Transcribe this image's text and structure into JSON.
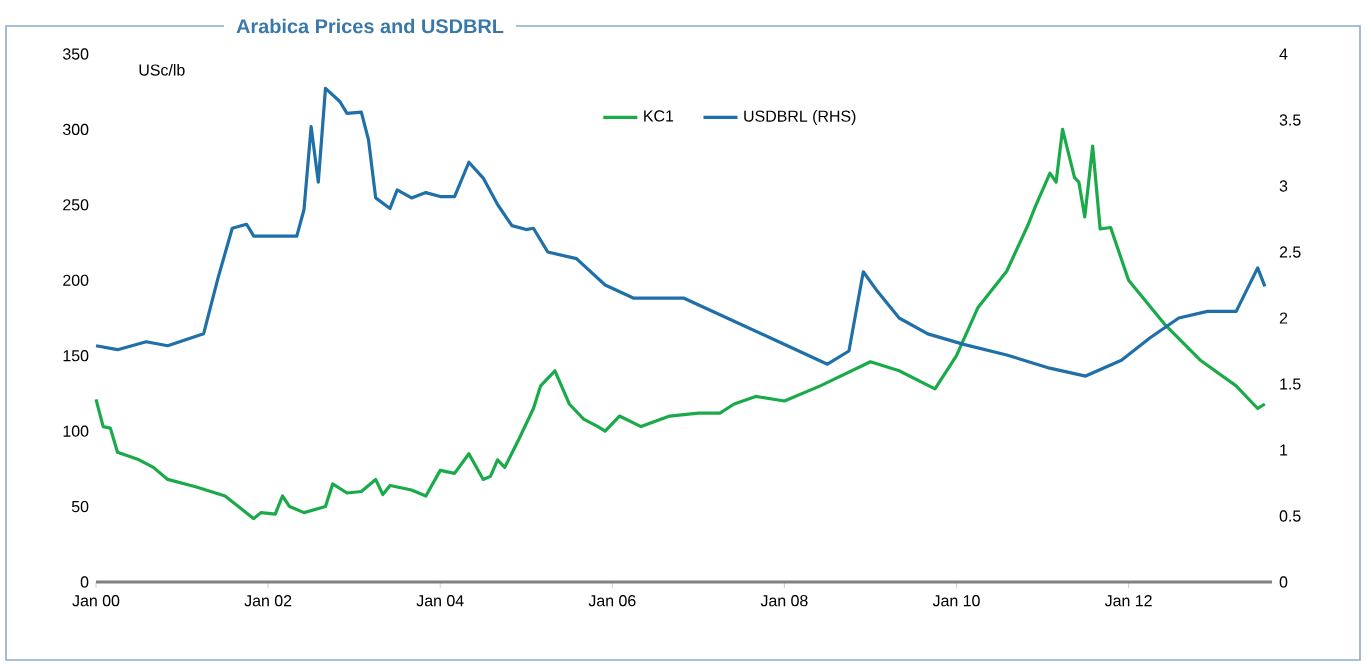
{
  "chart_data": {
    "type": "line",
    "title": "Arabica Prices and USDBRL",
    "ylabel": "USc/lb",
    "legend": "top",
    "xlim": [
      "2000-01",
      "2013-09"
    ],
    "xticks": [
      {
        "value": "2000-01",
        "label": "Jan 00"
      },
      {
        "value": "2002-01",
        "label": "Jan 02"
      },
      {
        "value": "2004-01",
        "label": "Jan 04"
      },
      {
        "value": "2006-01",
        "label": "Jan 06"
      },
      {
        "value": "2008-01",
        "label": "Jan 08"
      },
      {
        "value": "2010-01",
        "label": "Jan 10"
      },
      {
        "value": "2012-01",
        "label": "Jan 12"
      }
    ],
    "ylim": [
      0,
      350
    ],
    "yticks": [
      0,
      50,
      100,
      150,
      200,
      250,
      300,
      350
    ],
    "y2lim": [
      0,
      4
    ],
    "y2ticks": [
      0,
      0.5,
      1,
      1.5,
      2,
      2.5,
      3,
      3.5,
      4
    ],
    "series": [
      {
        "name": "KC1",
        "color": "#1aaa4a",
        "x": [
          "2000-01-01",
          "2000-02-01",
          "2000-03-01",
          "2000-04-01",
          "2000-07-01",
          "2000-09-01",
          "2000-11-01",
          "2001-03-01",
          "2001-07-01",
          "2001-11-01",
          "2001-12-01",
          "2002-02-01",
          "2002-03-01",
          "2002-04-01",
          "2002-06-01",
          "2002-09-01",
          "2002-10-01",
          "2002-12-01",
          "2003-02-01",
          "2003-04-01",
          "2003-05-01",
          "2003-06-01",
          "2003-09-01",
          "2003-11-01",
          "2004-01-01",
          "2004-03-01",
          "2004-05-01",
          "2004-07-01",
          "2004-08-01",
          "2004-09-01",
          "2004-10-01",
          "2004-12-01",
          "2005-02-01",
          "2005-03-01",
          "2005-05-01",
          "2005-07-01",
          "2005-09-01",
          "2005-11-01",
          "2005-12-01",
          "2006-02-01",
          "2006-05-01",
          "2006-09-01",
          "2007-01-01",
          "2007-04-01",
          "2007-06-01",
          "2007-09-01",
          "2008-01-01",
          "2008-06-01",
          "2009-01-01",
          "2009-05-01",
          "2009-10-01",
          "2010-01-01",
          "2010-04-01",
          "2010-08-01",
          "2010-11-01",
          "2010-12-01",
          "2011-02-02",
          "2011-02-28",
          "2011-03-25",
          "2011-05-15",
          "2011-06-03",
          "2011-06-28",
          "2011-07-31",
          "2011-09-02",
          "2011-10-16",
          "2012-01-01",
          "2012-06-01",
          "2012-11-01",
          "2013-04-01",
          "2013-07-01",
          "2013-08-01"
        ],
        "values": [
          121,
          103,
          102,
          86,
          81,
          76,
          68,
          63,
          57,
          42,
          46,
          45,
          57,
          50,
          46,
          50,
          65,
          59,
          60,
          68,
          58,
          64,
          61,
          57,
          74,
          72,
          85,
          68,
          70,
          81,
          76,
          95,
          115,
          130,
          140,
          118,
          108,
          103,
          100,
          110,
          103,
          110,
          112,
          112,
          118,
          123,
          120,
          130,
          146,
          140,
          128,
          150,
          182,
          206,
          237,
          249,
          271,
          265,
          300,
          268,
          265,
          242,
          289,
          234,
          235,
          200,
          171,
          147,
          130,
          115,
          118
        ]
      },
      {
        "name": "USDBRL (RHS)",
        "color": "#1f6fa8",
        "axis": "y2",
        "x": [
          "2000-01-01",
          "2000-04-01",
          "2000-08-01",
          "2000-11-01",
          "2001-04-01",
          "2001-06-01",
          "2001-08-01",
          "2001-10-01",
          "2001-11-01",
          "2002-05-01",
          "2002-06-01",
          "2002-07-01",
          "2002-08-01",
          "2002-09-01",
          "2002-11-01",
          "2002-12-01",
          "2003-02-01",
          "2003-03-01",
          "2003-04-01",
          "2003-06-01",
          "2003-07-01",
          "2003-09-01",
          "2003-11-01",
          "2004-01-01",
          "2004-03-01",
          "2004-05-01",
          "2004-07-01",
          "2004-09-01",
          "2004-11-01",
          "2005-01-01",
          "2005-02-01",
          "2005-04-01",
          "2005-08-01",
          "2005-12-01",
          "2006-04-01",
          "2006-11-01",
          "2007-05-01",
          "2007-11-01",
          "2008-03-01",
          "2008-07-01",
          "2008-10-01",
          "2008-12-01",
          "2009-02-01",
          "2009-05-01",
          "2009-09-01",
          "2010-02-01",
          "2010-08-01",
          "2011-02-01",
          "2011-07-01",
          "2011-12-01",
          "2012-04-01",
          "2012-08-01",
          "2012-12-01",
          "2013-04-01",
          "2013-07-01",
          "2013-08-01"
        ],
        "values": [
          1.79,
          1.76,
          1.82,
          1.79,
          1.88,
          2.3,
          2.68,
          2.71,
          2.62,
          2.62,
          2.82,
          3.45,
          3.03,
          3.74,
          3.64,
          3.55,
          3.56,
          3.35,
          2.91,
          2.83,
          2.97,
          2.91,
          2.95,
          2.92,
          2.92,
          3.18,
          3.06,
          2.86,
          2.7,
          2.67,
          2.68,
          2.5,
          2.45,
          2.25,
          2.15,
          2.15,
          2.0,
          1.85,
          1.75,
          1.65,
          1.75,
          2.35,
          2.2,
          2.0,
          1.88,
          1.8,
          1.72,
          1.62,
          1.56,
          1.68,
          1.85,
          2.0,
          2.05,
          2.05,
          2.38,
          2.24
        ]
      }
    ]
  }
}
